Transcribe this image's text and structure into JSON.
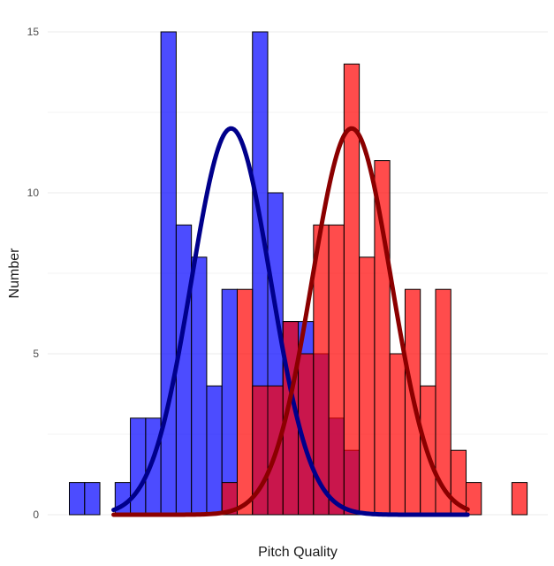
{
  "chart_data": {
    "type": "histogram",
    "title": "",
    "xlabel": "Pitch Quality",
    "ylabel": "Number",
    "ylim": [
      0,
      15
    ],
    "yticks": [
      0,
      5,
      10,
      15
    ],
    "x_tick_labels_shown": false,
    "grid": true,
    "legend": "none",
    "bins": 30,
    "bin_index_range": [
      0,
      29
    ],
    "series": [
      {
        "name": "blue",
        "color": "#0000ff",
        "opacity": 0.7,
        "counts": [
          1,
          1,
          0,
          1,
          3,
          3,
          15,
          9,
          8,
          4,
          7,
          0,
          15,
          10,
          6,
          6,
          5,
          3,
          2,
          0,
          0,
          0,
          0,
          0,
          0,
          0,
          0,
          0,
          0,
          0
        ]
      },
      {
        "name": "red",
        "color": "#ff0000",
        "opacity": 0.7,
        "counts": [
          0,
          0,
          0,
          0,
          0,
          0,
          0,
          0,
          0,
          0,
          1,
          7,
          4,
          4,
          6,
          5,
          9,
          9,
          14,
          8,
          11,
          5,
          7,
          4,
          7,
          2,
          1,
          0,
          0,
          1
        ]
      }
    ],
    "density_curves": [
      {
        "name": "blue-fit",
        "color": "#00008b",
        "mean": 10.6,
        "sd": 2.6,
        "peak": 12,
        "domain": [
          2.9,
          26.1
        ]
      },
      {
        "name": "red-fit",
        "color": "#8b0000",
        "mean": 18.5,
        "sd": 2.6,
        "peak": 12,
        "domain": [
          2.9,
          26.1
        ]
      }
    ]
  }
}
